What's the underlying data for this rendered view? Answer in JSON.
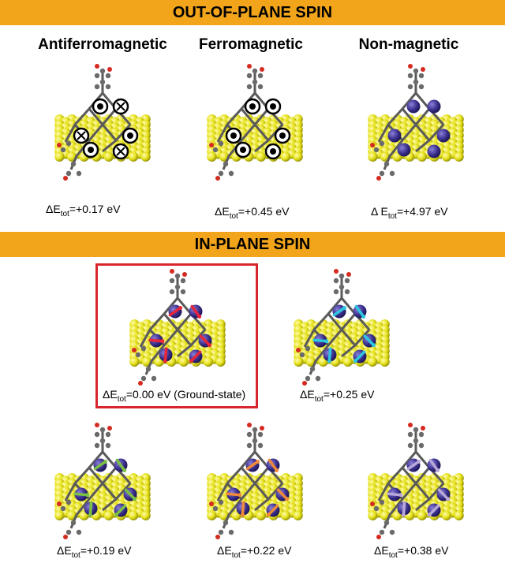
{
  "sections": {
    "out_of_plane": "OUT-OF-PLANE SPIN",
    "in_plane": "IN-PLANE SPIN"
  },
  "columns": {
    "antiferro": "Antiferromagnetic",
    "ferro": "Ferromagnetic",
    "nonmag": "Non-magnetic"
  },
  "energies": {
    "afm": "+0.17 eV",
    "fm": "+0.45 eV",
    "nm": "+4.97 eV",
    "ground": "0.00 eV (Ground-state)",
    "ip2": "+0.25 eV",
    "ip3": "+0.19 eV",
    "ip4": "+0.22 eV",
    "ip5": "+0.38 eV"
  },
  "energy_prefix": "ΔE",
  "energy_prefix_spaced": "Δ E",
  "energy_sub": "tot",
  "energy_eq": "=",
  "colors": {
    "banner": "#f2a51a",
    "gold_atom": "#e6e21a",
    "metal_atom": "#3a2f8c",
    "highlight_box": "#d9262e",
    "arrow_red": "#e8263a",
    "arrow_cyan": "#2cc6e0",
    "arrow_green": "#7ac043",
    "arrow_orange": "#f08a3a",
    "arrow_lilac": "#b8a8d8"
  }
}
